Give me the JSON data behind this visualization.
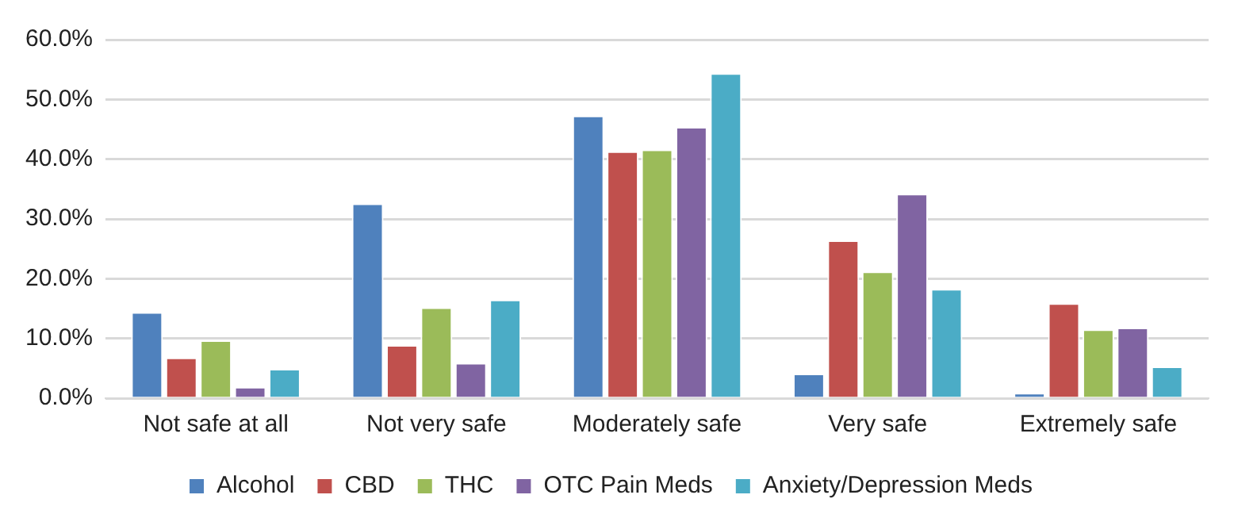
{
  "chart_data": {
    "type": "bar",
    "categories": [
      "Not safe at all",
      "Not very safe",
      "Moderately safe",
      "Very safe",
      "Extremely safe"
    ],
    "series": [
      {
        "name": "Alcohol",
        "color": "#4f81bd",
        "values": [
          14.4,
          32.6,
          47.3,
          4.1,
          0.9
        ]
      },
      {
        "name": "CBD",
        "color": "#c0504d",
        "values": [
          6.8,
          8.9,
          41.3,
          26.4,
          15.9
        ]
      },
      {
        "name": "THC",
        "color": "#9bbb59",
        "values": [
          9.7,
          15.2,
          41.6,
          21.2,
          11.5
        ]
      },
      {
        "name": "OTC Pain Meds",
        "color": "#8064a2",
        "values": [
          1.9,
          5.9,
          45.4,
          34.2,
          11.8
        ]
      },
      {
        "name": "Anxiety/Depression Meds",
        "color": "#4bacc6",
        "values": [
          4.9,
          16.5,
          54.4,
          18.3,
          5.3
        ]
      }
    ],
    "ylim": [
      0,
      60
    ],
    "yticks": [
      {
        "value": 0,
        "label": "0.0%"
      },
      {
        "value": 10,
        "label": "10.0%"
      },
      {
        "value": 20,
        "label": "20.0%"
      },
      {
        "value": 30,
        "label": "30.0%"
      },
      {
        "value": 40,
        "label": "40.0%"
      },
      {
        "value": 50,
        "label": "50.0%"
      },
      {
        "value": 60,
        "label": "60.0%"
      }
    ],
    "grid": "y",
    "legend": "bottom"
  }
}
